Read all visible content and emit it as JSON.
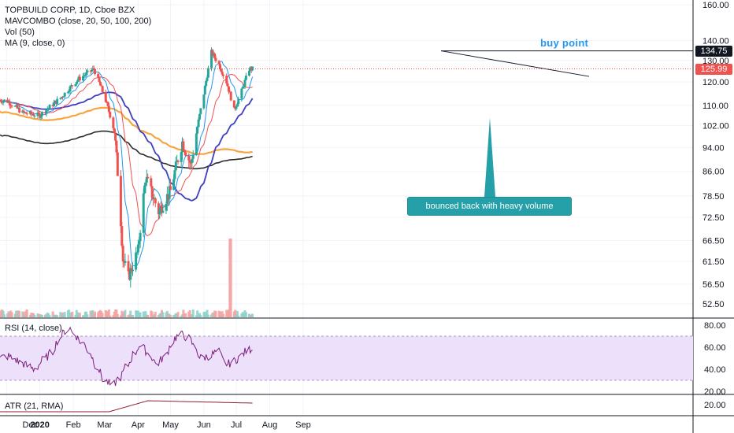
{
  "legend": {
    "title": "TOPBUILD CORP, 1D, Cboe BZX",
    "mavcombo": "MAVCOMBO (close, 20, 50, 100, 200)",
    "vol": "Vol (50)",
    "ma": "MA (9, close, 0)",
    "rsi": "RSI (14, close)",
    "atr": "ATR (21, RMA)"
  },
  "annotations": {
    "buy_point": "buy point",
    "callout": "bounced back with heavy volume"
  },
  "price_tags": {
    "resistance": "134.75",
    "last": "125.99"
  },
  "colors": {
    "up": "#26a69a",
    "down": "#ef5350",
    "ma9": "#2196f3",
    "ma20": "#ef5350",
    "ma50": "#3f3fbf",
    "ma100": "#f7a541",
    "ma200": "#2a2a2a",
    "rsi": "#7e1d7e",
    "rsi_band": "#ede0fa",
    "atr": "#8e2035",
    "callout": "#26a0a8",
    "buy_point": "#2196f3"
  },
  "chart_data": {
    "type": "candlestick",
    "title": "TOPBUILD CORP, 1D, Cboe BZX",
    "x_labels": [
      "Dec",
      "2020",
      "Feb",
      "Mar",
      "Apr",
      "May",
      "Jun",
      "Jul",
      "Aug",
      "Sep"
    ],
    "price_axis": {
      "ticks": [
        160.0,
        140.0,
        130.0,
        120.0,
        110.0,
        102.0,
        94.0,
        86.0,
        78.5,
        72.5,
        66.5,
        61.5,
        56.5,
        52.5
      ],
      "scale": "log"
    },
    "price_approx": [
      [
        "2019-12-01",
        112
      ],
      [
        "2019-12-16",
        107
      ],
      [
        "2020-01-01",
        106
      ],
      [
        "2020-01-20",
        113
      ],
      [
        "2020-02-05",
        121
      ],
      [
        "2020-02-20",
        126
      ],
      [
        "2020-03-02",
        112
      ],
      [
        "2020-03-10",
        100
      ],
      [
        "2020-03-18",
        62
      ],
      [
        "2020-03-23",
        58
      ],
      [
        "2020-04-01",
        64
      ],
      [
        "2020-04-08",
        84
      ],
      [
        "2020-04-20",
        74
      ],
      [
        "2020-05-01",
        80
      ],
      [
        "2020-05-12",
        96
      ],
      [
        "2020-05-20",
        88
      ],
      [
        "2020-06-01",
        115
      ],
      [
        "2020-06-08",
        134
      ],
      [
        "2020-06-15",
        128
      ],
      [
        "2020-06-22",
        120
      ],
      [
        "2020-06-29",
        108
      ],
      [
        "2020-07-06",
        116
      ],
      [
        "2020-07-13",
        126
      ]
    ],
    "moving_averages": [
      {
        "period": 9,
        "note": "blue"
      },
      {
        "period": 20,
        "note": "red"
      },
      {
        "period": 50,
        "note": "navy"
      },
      {
        "period": 100,
        "note": "orange"
      },
      {
        "period": 200,
        "note": "black"
      }
    ],
    "lines": {
      "resistance": 134.75,
      "last_close": 125.99
    },
    "volume_spike_date": "2020-06-26",
    "rsi": {
      "ticks": [
        80.0,
        60.0,
        40.0,
        20.0
      ],
      "band": [
        30,
        70
      ],
      "values_approx": [
        50,
        52,
        48,
        44,
        40,
        48,
        55,
        70,
        78,
        68,
        60,
        45,
        30,
        25,
        35,
        48,
        62,
        55,
        45,
        52,
        68,
        72,
        65,
        50,
        52,
        56,
        44,
        48,
        55,
        60
      ]
    },
    "atr": {
      "ticks": [
        20.0
      ]
    }
  }
}
